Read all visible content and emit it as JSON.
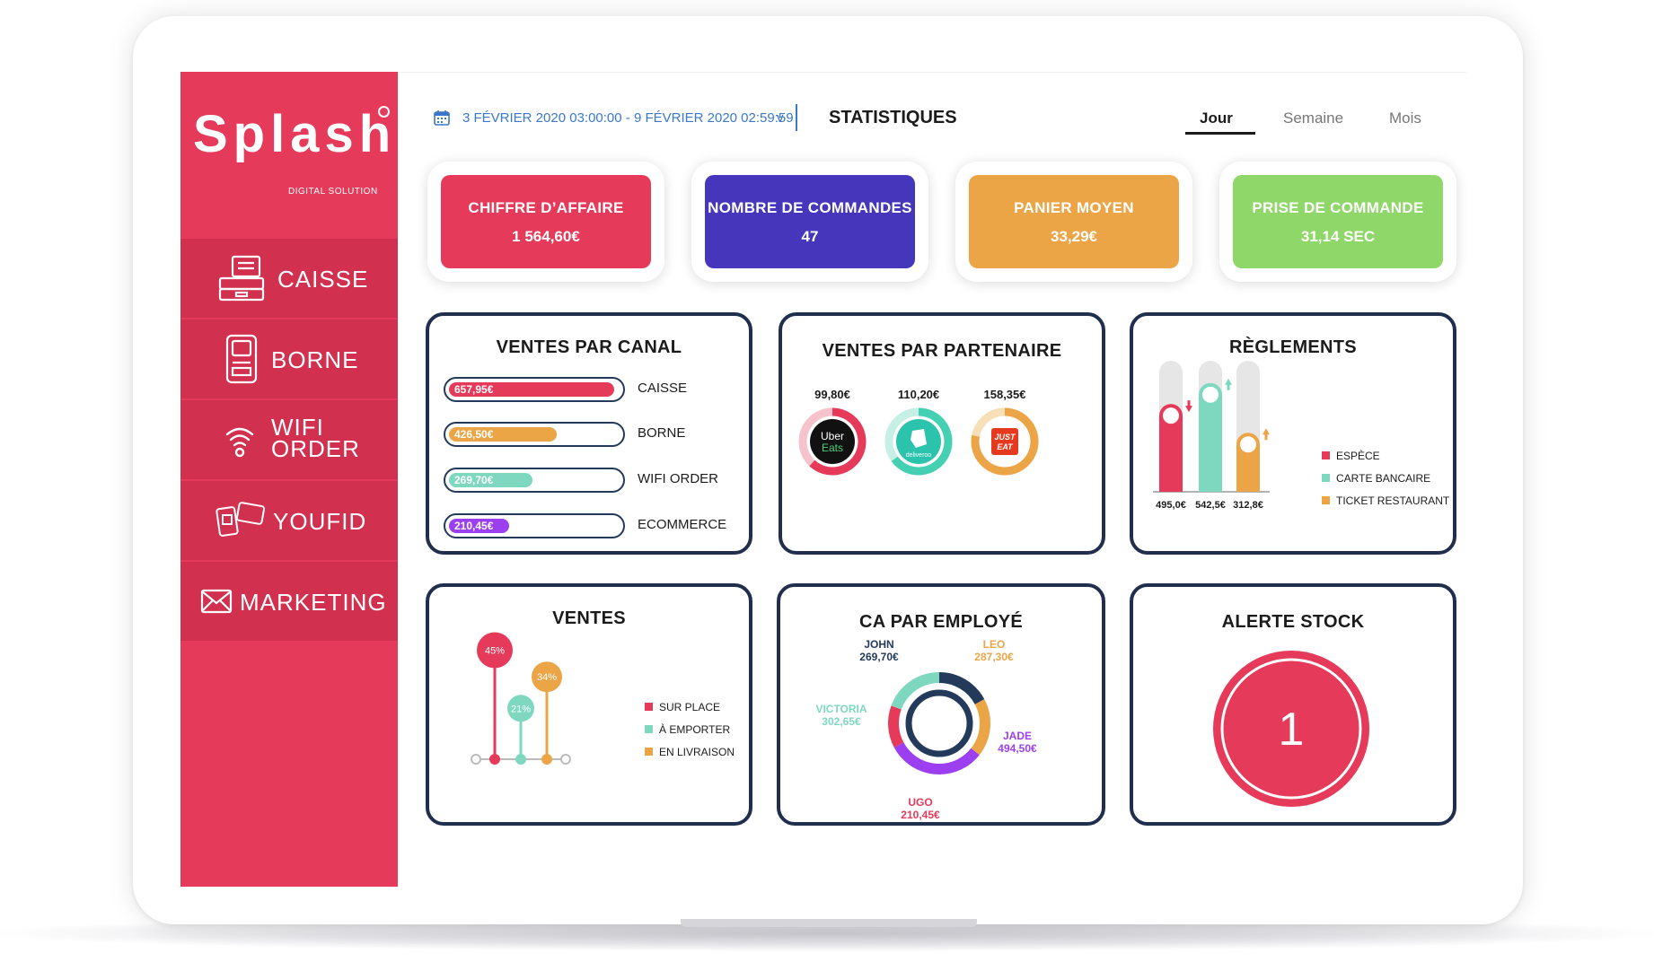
{
  "brand": {
    "name": "Splash",
    "subtitle": "DIGITAL SOLUTION"
  },
  "sidebar": {
    "items": [
      {
        "label": "CAISSE",
        "icon": "cash-register-icon"
      },
      {
        "label": "BORNE",
        "icon": "kiosk-icon"
      },
      {
        "label": "WIFI",
        "label2": "ORDER",
        "icon": "wifi-order-icon"
      },
      {
        "label": "YOUFID",
        "icon": "loyalty-card-icon"
      },
      {
        "label": "MARKETING",
        "icon": "envelope-icon"
      }
    ]
  },
  "header": {
    "date_range": "3 FÉVRIER 2020 03:00:00 - 9 FÉVRIER 2020 02:59:59",
    "chevron": "v",
    "title": "STATISTIQUES",
    "tabs": [
      {
        "label": "Jour",
        "active": true
      },
      {
        "label": "Semaine",
        "active": false
      },
      {
        "label": "Mois",
        "active": false
      }
    ]
  },
  "kpis": [
    {
      "title": "CHIFFRE D’AFFAIRE",
      "value": "1 564,60€",
      "color": "#e63a5a"
    },
    {
      "title": "NOMBRE DE COMMANDES",
      "value": "47",
      "color": "#4536bb"
    },
    {
      "title": "PANIER MOYEN",
      "value": "33,29€",
      "color": "#eca546"
    },
    {
      "title": "PRISE DE COMMANDE",
      "value": "31,14 SEC",
      "color": "#8fd769"
    }
  ],
  "ventes_canal": {
    "title": "VENTES PAR CANAL",
    "rows": [
      {
        "value": "657,95€",
        "label": "CAISSE",
        "fraction": 0.97,
        "color": "#e63a5a"
      },
      {
        "value": "426,50€",
        "label": "BORNE",
        "fraction": 0.63,
        "color": "#eca546"
      },
      {
        "value": "269,70€",
        "label": "WIFI ORDER",
        "fraction": 0.49,
        "color": "#7dd8bf"
      },
      {
        "value": "210,45€",
        "label": "ECOMMERCE",
        "fraction": 0.35,
        "color": "#9b3ff0"
      }
    ]
  },
  "ventes_partenaire": {
    "title": "VENTES PAR PARTENAIRE",
    "partners": [
      {
        "value": "99,80€",
        "logo_text": "Uber",
        "logo_text2": "Eats",
        "share": 0.27,
        "color": "#e63a5a",
        "track": "#f6c3cc"
      },
      {
        "value": "110,20€",
        "logo_text": "deliveroo",
        "share": 0.3,
        "color": "#45cfb3",
        "track": "#c6efe5"
      },
      {
        "value": "158,35€",
        "logo_text": "JUST",
        "logo_text2": "EAT",
        "share": 0.43,
        "color": "#eca546",
        "track": "#f7dfb8"
      }
    ]
  },
  "reglements": {
    "title": "RÈGLEMENTS",
    "bars": [
      {
        "label": "495,0€",
        "level": 0.67,
        "color": "#e63a5a",
        "trend": "down"
      },
      {
        "label": "542,5€",
        "level": 0.83,
        "color": "#7dd8bf",
        "trend": "up"
      },
      {
        "label": "312,8€",
        "level": 0.45,
        "color": "#eca546",
        "trend": "up"
      }
    ],
    "legend": [
      {
        "label": "ESPÈCE",
        "color": "#e63a5a"
      },
      {
        "label": "CARTE BANCAIRE",
        "color": "#7dd8bf"
      },
      {
        "label": "TICKET RESTAURANT",
        "color": "#eca546"
      }
    ]
  },
  "ventes": {
    "title": "VENTES",
    "items": [
      {
        "pct": "45%",
        "label": "SUR PLACE",
        "level": 0.45,
        "color": "#e63a5a"
      },
      {
        "pct": "21%",
        "label": "À EMPORTER",
        "level": 0.21,
        "color": "#7dd8bf"
      },
      {
        "pct": "34%",
        "label": "EN LIVRAISON",
        "level": 0.34,
        "color": "#eca546"
      }
    ]
  },
  "ca_employe": {
    "title": "CA PAR EMPLOYÉ",
    "employees": [
      {
        "name": "JOHN",
        "value": "269,70€",
        "share": 0.172,
        "color": "#243a5b"
      },
      {
        "name": "LEO",
        "value": "287,30€",
        "share": 0.184,
        "color": "#eca546"
      },
      {
        "name": "JADE",
        "value": "494,50€",
        "share": 0.316,
        "color": "#9b3ff0"
      },
      {
        "name": "UGO",
        "value": "210,45€",
        "share": 0.134,
        "color": "#e63a5a"
      },
      {
        "name": "VICTORIA",
        "value": "302,65€",
        "share": 0.194,
        "color": "#7dd8bf"
      }
    ]
  },
  "alerte_stock": {
    "title": "ALERTE STOCK",
    "value": "1",
    "color": "#e63a5a"
  }
}
